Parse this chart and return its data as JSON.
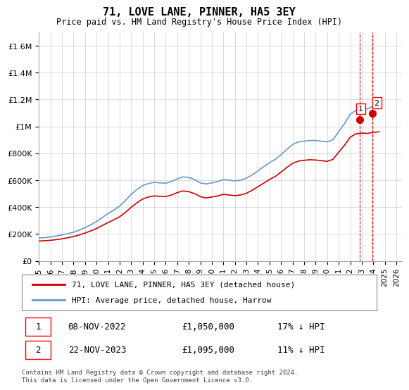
{
  "title": "71, LOVE LANE, PINNER, HA5 3EY",
  "subtitle": "Price paid vs. HM Land Registry's House Price Index (HPI)",
  "ylabel": "",
  "ylim": [
    0,
    1700000
  ],
  "yticks": [
    0,
    200000,
    400000,
    600000,
    800000,
    1000000,
    1200000,
    1400000,
    1600000
  ],
  "ytick_labels": [
    "£0",
    "£200K",
    "£400K",
    "£600K",
    "£800K",
    "£1M",
    "£1.2M",
    "£1.4M",
    "£1.6M"
  ],
  "legend_line1": "71, LOVE LANE, PINNER, HA5 3EY (detached house)",
  "legend_line2": "HPI: Average price, detached house, Harrow",
  "transaction1_num": "1",
  "transaction1_date": "08-NOV-2022",
  "transaction1_price": "£1,050,000",
  "transaction1_hpi": "17% ↓ HPI",
  "transaction2_num": "2",
  "transaction2_date": "22-NOV-2023",
  "transaction2_price": "£1,095,000",
  "transaction2_hpi": "11% ↓ HPI",
  "footnote": "Contains HM Land Registry data © Crown copyright and database right 2024.\nThis data is licensed under the Open Government Licence v3.0.",
  "line_color_red": "#cc0000",
  "line_color_blue": "#6699cc",
  "marker_color": "#cc0000",
  "dashed_line_color": "#cc0000",
  "background_color": "#ffffff",
  "grid_color": "#cccccc",
  "xlim_start": 1995.0,
  "xlim_end": 2026.5,
  "hpi_x": [
    1995.0,
    1995.5,
    1996.0,
    1996.5,
    1997.0,
    1997.5,
    1998.0,
    1998.5,
    1999.0,
    1999.5,
    2000.0,
    2000.5,
    2001.0,
    2001.5,
    2002.0,
    2002.5,
    2003.0,
    2003.5,
    2004.0,
    2004.5,
    2005.0,
    2005.5,
    2006.0,
    2006.5,
    2007.0,
    2007.5,
    2008.0,
    2008.5,
    2009.0,
    2009.5,
    2010.0,
    2010.5,
    2011.0,
    2011.5,
    2012.0,
    2012.5,
    2013.0,
    2013.5,
    2014.0,
    2014.5,
    2015.0,
    2015.5,
    2016.0,
    2016.5,
    2017.0,
    2017.5,
    2018.0,
    2018.5,
    2019.0,
    2019.5,
    2020.0,
    2020.5,
    2021.0,
    2021.5,
    2022.0,
    2022.5,
    2023.0,
    2023.5,
    2024.0,
    2024.5
  ],
  "hpi_y": [
    170000,
    173000,
    178000,
    185000,
    193000,
    202000,
    213000,
    228000,
    247000,
    268000,
    293000,
    322000,
    352000,
    378000,
    408000,
    448000,
    495000,
    530000,
    560000,
    575000,
    585000,
    580000,
    578000,
    590000,
    610000,
    625000,
    620000,
    605000,
    580000,
    572000,
    580000,
    590000,
    605000,
    600000,
    595000,
    600000,
    615000,
    640000,
    670000,
    700000,
    730000,
    755000,
    790000,
    830000,
    865000,
    885000,
    890000,
    895000,
    895000,
    890000,
    885000,
    900000,
    960000,
    1020000,
    1090000,
    1120000,
    1130000,
    1130000,
    1150000,
    1170000
  ],
  "price_x": [
    1995.0,
    1995.5,
    1996.0,
    1996.5,
    1997.0,
    1997.5,
    1998.0,
    1998.5,
    1999.0,
    1999.5,
    2000.0,
    2000.5,
    2001.0,
    2001.5,
    2002.0,
    2002.5,
    2003.0,
    2003.5,
    2004.0,
    2004.5,
    2005.0,
    2005.5,
    2006.0,
    2006.5,
    2007.0,
    2007.5,
    2008.0,
    2008.5,
    2009.0,
    2009.5,
    2010.0,
    2010.5,
    2011.0,
    2011.5,
    2012.0,
    2012.5,
    2013.0,
    2013.5,
    2014.0,
    2014.5,
    2015.0,
    2015.5,
    2016.0,
    2016.5,
    2017.0,
    2017.5,
    2018.0,
    2018.5,
    2019.0,
    2019.5,
    2020.0,
    2020.5,
    2021.0,
    2021.5,
    2022.0,
    2022.5,
    2023.0,
    2023.5,
    2024.0,
    2024.5
  ],
  "price_y": [
    148000,
    150000,
    153000,
    158000,
    164000,
    172000,
    181000,
    193000,
    207000,
    223000,
    241000,
    263000,
    285000,
    305000,
    328000,
    360000,
    398000,
    432000,
    460000,
    475000,
    483000,
    480000,
    478000,
    490000,
    508000,
    520000,
    515000,
    500000,
    478000,
    468000,
    475000,
    483000,
    495000,
    490000,
    485000,
    490000,
    503000,
    525000,
    552000,
    578000,
    605000,
    628000,
    660000,
    695000,
    725000,
    742000,
    748000,
    752000,
    750000,
    745000,
    740000,
    755000,
    808000,
    860000,
    920000,
    945000,
    950000,
    948000,
    955000,
    960000
  ],
  "sale1_x": 2022.85,
  "sale1_y": 1050000,
  "sale2_x": 2023.9,
  "sale2_y": 1095000,
  "xticks": [
    1995,
    1996,
    1997,
    1998,
    1999,
    2000,
    2001,
    2002,
    2003,
    2004,
    2005,
    2006,
    2007,
    2008,
    2009,
    2010,
    2011,
    2012,
    2013,
    2014,
    2015,
    2016,
    2017,
    2018,
    2019,
    2020,
    2021,
    2022,
    2023,
    2024,
    2025,
    2026
  ]
}
